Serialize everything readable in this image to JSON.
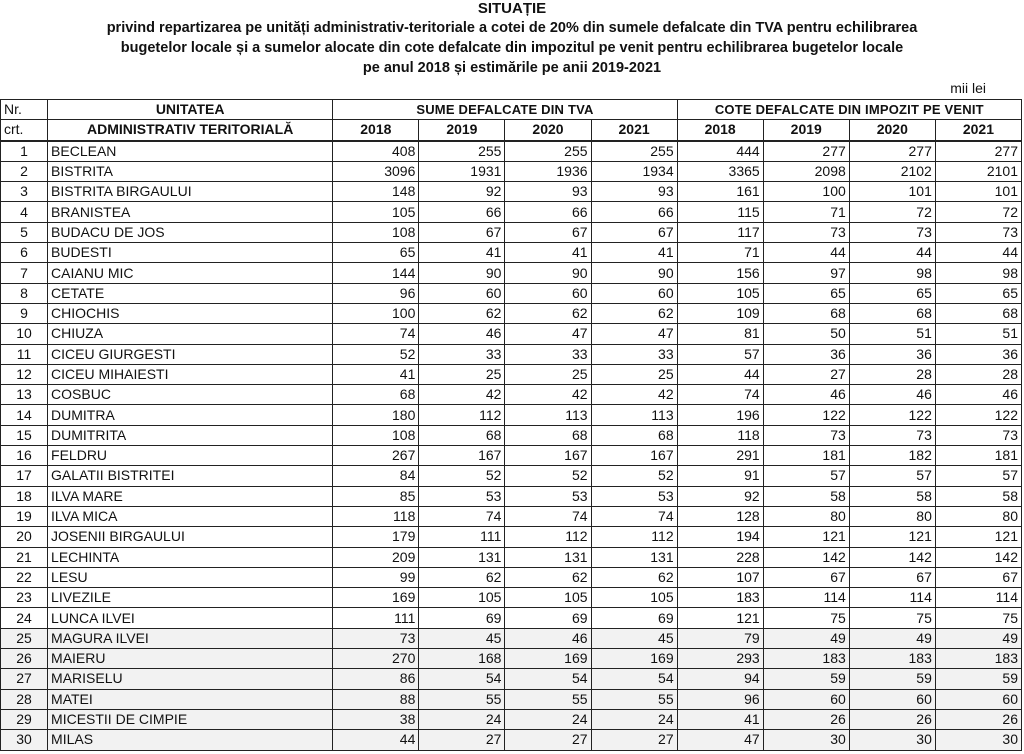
{
  "header": {
    "title": "SITUAȚIE",
    "line1": "privind repartizarea pe unități administrativ-teritoriale a cotei de 20% din sumele defalcate din TVA pentru echilibrarea",
    "line2": "bugetelor locale și a sumelor alocate din cote defalcate din impozitul pe venit pentru echilibrarea bugetelor locale",
    "line3": "pe anul 2018 și estimările pe anii 2019-2021",
    "unit": "mii lei"
  },
  "table": {
    "nr_label_1": "Nr.",
    "nr_label_2": "crt.",
    "name_label_1": "UNITATEA",
    "name_label_2": "ADMINISTRATIV TERITORIALĂ",
    "group_tva": "SUME DEFALCATE DIN TVA",
    "group_impozit": "COTE DEFALCATE DIN IMPOZIT PE VENIT",
    "years": [
      "2018",
      "2019",
      "2020",
      "2021"
    ],
    "rows": [
      {
        "nr": "1",
        "name": "BECLEAN",
        "tva": [
          "408",
          "255",
          "255",
          "255"
        ],
        "imp": [
          "444",
          "277",
          "277",
          "277"
        ]
      },
      {
        "nr": "2",
        "name": "BISTRITA",
        "tva": [
          "3096",
          "1931",
          "1936",
          "1934"
        ],
        "imp": [
          "3365",
          "2098",
          "2102",
          "2101"
        ]
      },
      {
        "nr": "3",
        "name": "BISTRITA BIRGAULUI",
        "tva": [
          "148",
          "92",
          "93",
          "93"
        ],
        "imp": [
          "161",
          "100",
          "101",
          "101"
        ]
      },
      {
        "nr": "4",
        "name": "BRANISTEA",
        "tva": [
          "105",
          "66",
          "66",
          "66"
        ],
        "imp": [
          "115",
          "71",
          "72",
          "72"
        ]
      },
      {
        "nr": "5",
        "name": "BUDACU DE JOS",
        "tva": [
          "108",
          "67",
          "67",
          "67"
        ],
        "imp": [
          "117",
          "73",
          "73",
          "73"
        ]
      },
      {
        "nr": "6",
        "name": "BUDESTI",
        "tva": [
          "65",
          "41",
          "41",
          "41"
        ],
        "imp": [
          "71",
          "44",
          "44",
          "44"
        ]
      },
      {
        "nr": "7",
        "name": "CAIANU MIC",
        "tva": [
          "144",
          "90",
          "90",
          "90"
        ],
        "imp": [
          "156",
          "97",
          "98",
          "98"
        ]
      },
      {
        "nr": "8",
        "name": "CETATE",
        "tva": [
          "96",
          "60",
          "60",
          "60"
        ],
        "imp": [
          "105",
          "65",
          "65",
          "65"
        ]
      },
      {
        "nr": "9",
        "name": "CHIOCHIS",
        "tva": [
          "100",
          "62",
          "62",
          "62"
        ],
        "imp": [
          "109",
          "68",
          "68",
          "68"
        ]
      },
      {
        "nr": "10",
        "name": "CHIUZA",
        "tva": [
          "74",
          "46",
          "47",
          "47"
        ],
        "imp": [
          "81",
          "50",
          "51",
          "51"
        ]
      },
      {
        "nr": "11",
        "name": "CICEU GIURGESTI",
        "tva": [
          "52",
          "33",
          "33",
          "33"
        ],
        "imp": [
          "57",
          "36",
          "36",
          "36"
        ]
      },
      {
        "nr": "12",
        "name": "CICEU MIHAIESTI",
        "tva": [
          "41",
          "25",
          "25",
          "25"
        ],
        "imp": [
          "44",
          "27",
          "28",
          "28"
        ]
      },
      {
        "nr": "13",
        "name": "COSBUC",
        "tva": [
          "68",
          "42",
          "42",
          "42"
        ],
        "imp": [
          "74",
          "46",
          "46",
          "46"
        ]
      },
      {
        "nr": "14",
        "name": "DUMITRA",
        "tva": [
          "180",
          "112",
          "113",
          "113"
        ],
        "imp": [
          "196",
          "122",
          "122",
          "122"
        ]
      },
      {
        "nr": "15",
        "name": "DUMITRITA",
        "tva": [
          "108",
          "68",
          "68",
          "68"
        ],
        "imp": [
          "118",
          "73",
          "73",
          "73"
        ]
      },
      {
        "nr": "16",
        "name": "FELDRU",
        "tva": [
          "267",
          "167",
          "167",
          "167"
        ],
        "imp": [
          "291",
          "181",
          "182",
          "181"
        ]
      },
      {
        "nr": "17",
        "name": "GALATII BISTRITEI",
        "tva": [
          "84",
          "52",
          "52",
          "52"
        ],
        "imp": [
          "91",
          "57",
          "57",
          "57"
        ]
      },
      {
        "nr": "18",
        "name": "ILVA MARE",
        "tva": [
          "85",
          "53",
          "53",
          "53"
        ],
        "imp": [
          "92",
          "58",
          "58",
          "58"
        ]
      },
      {
        "nr": "19",
        "name": "ILVA MICA",
        "tva": [
          "118",
          "74",
          "74",
          "74"
        ],
        "imp": [
          "128",
          "80",
          "80",
          "80"
        ]
      },
      {
        "nr": "20",
        "name": "JOSENII BIRGAULUI",
        "tva": [
          "179",
          "111",
          "112",
          "112"
        ],
        "imp": [
          "194",
          "121",
          "121",
          "121"
        ]
      },
      {
        "nr": "21",
        "name": "LECHINTA",
        "tva": [
          "209",
          "131",
          "131",
          "131"
        ],
        "imp": [
          "228",
          "142",
          "142",
          "142"
        ]
      },
      {
        "nr": "22",
        "name": "LESU",
        "tva": [
          "99",
          "62",
          "62",
          "62"
        ],
        "imp": [
          "107",
          "67",
          "67",
          "67"
        ]
      },
      {
        "nr": "23",
        "name": "LIVEZILE",
        "tva": [
          "169",
          "105",
          "105",
          "105"
        ],
        "imp": [
          "183",
          "114",
          "114",
          "114"
        ]
      },
      {
        "nr": "24",
        "name": "LUNCA ILVEI",
        "tva": [
          "111",
          "69",
          "69",
          "69"
        ],
        "imp": [
          "121",
          "75",
          "75",
          "75"
        ]
      },
      {
        "nr": "25",
        "name": "MAGURA ILVEI",
        "tva": [
          "73",
          "45",
          "46",
          "45"
        ],
        "imp": [
          "79",
          "49",
          "49",
          "49"
        ]
      },
      {
        "nr": "26",
        "name": "MAIERU",
        "tva": [
          "270",
          "168",
          "169",
          "169"
        ],
        "imp": [
          "293",
          "183",
          "183",
          "183"
        ]
      },
      {
        "nr": "27",
        "name": "MARISELU",
        "tva": [
          "86",
          "54",
          "54",
          "54"
        ],
        "imp": [
          "94",
          "59",
          "59",
          "59"
        ]
      },
      {
        "nr": "28",
        "name": "MATEI",
        "tva": [
          "88",
          "55",
          "55",
          "55"
        ],
        "imp": [
          "96",
          "60",
          "60",
          "60"
        ]
      },
      {
        "nr": "29",
        "name": "MICESTII DE CIMPIE",
        "tva": [
          "38",
          "24",
          "24",
          "24"
        ],
        "imp": [
          "41",
          "26",
          "26",
          "26"
        ]
      },
      {
        "nr": "30",
        "name": "MILAS",
        "tva": [
          "44",
          "27",
          "27",
          "27"
        ],
        "imp": [
          "47",
          "30",
          "30",
          "30"
        ]
      }
    ]
  }
}
